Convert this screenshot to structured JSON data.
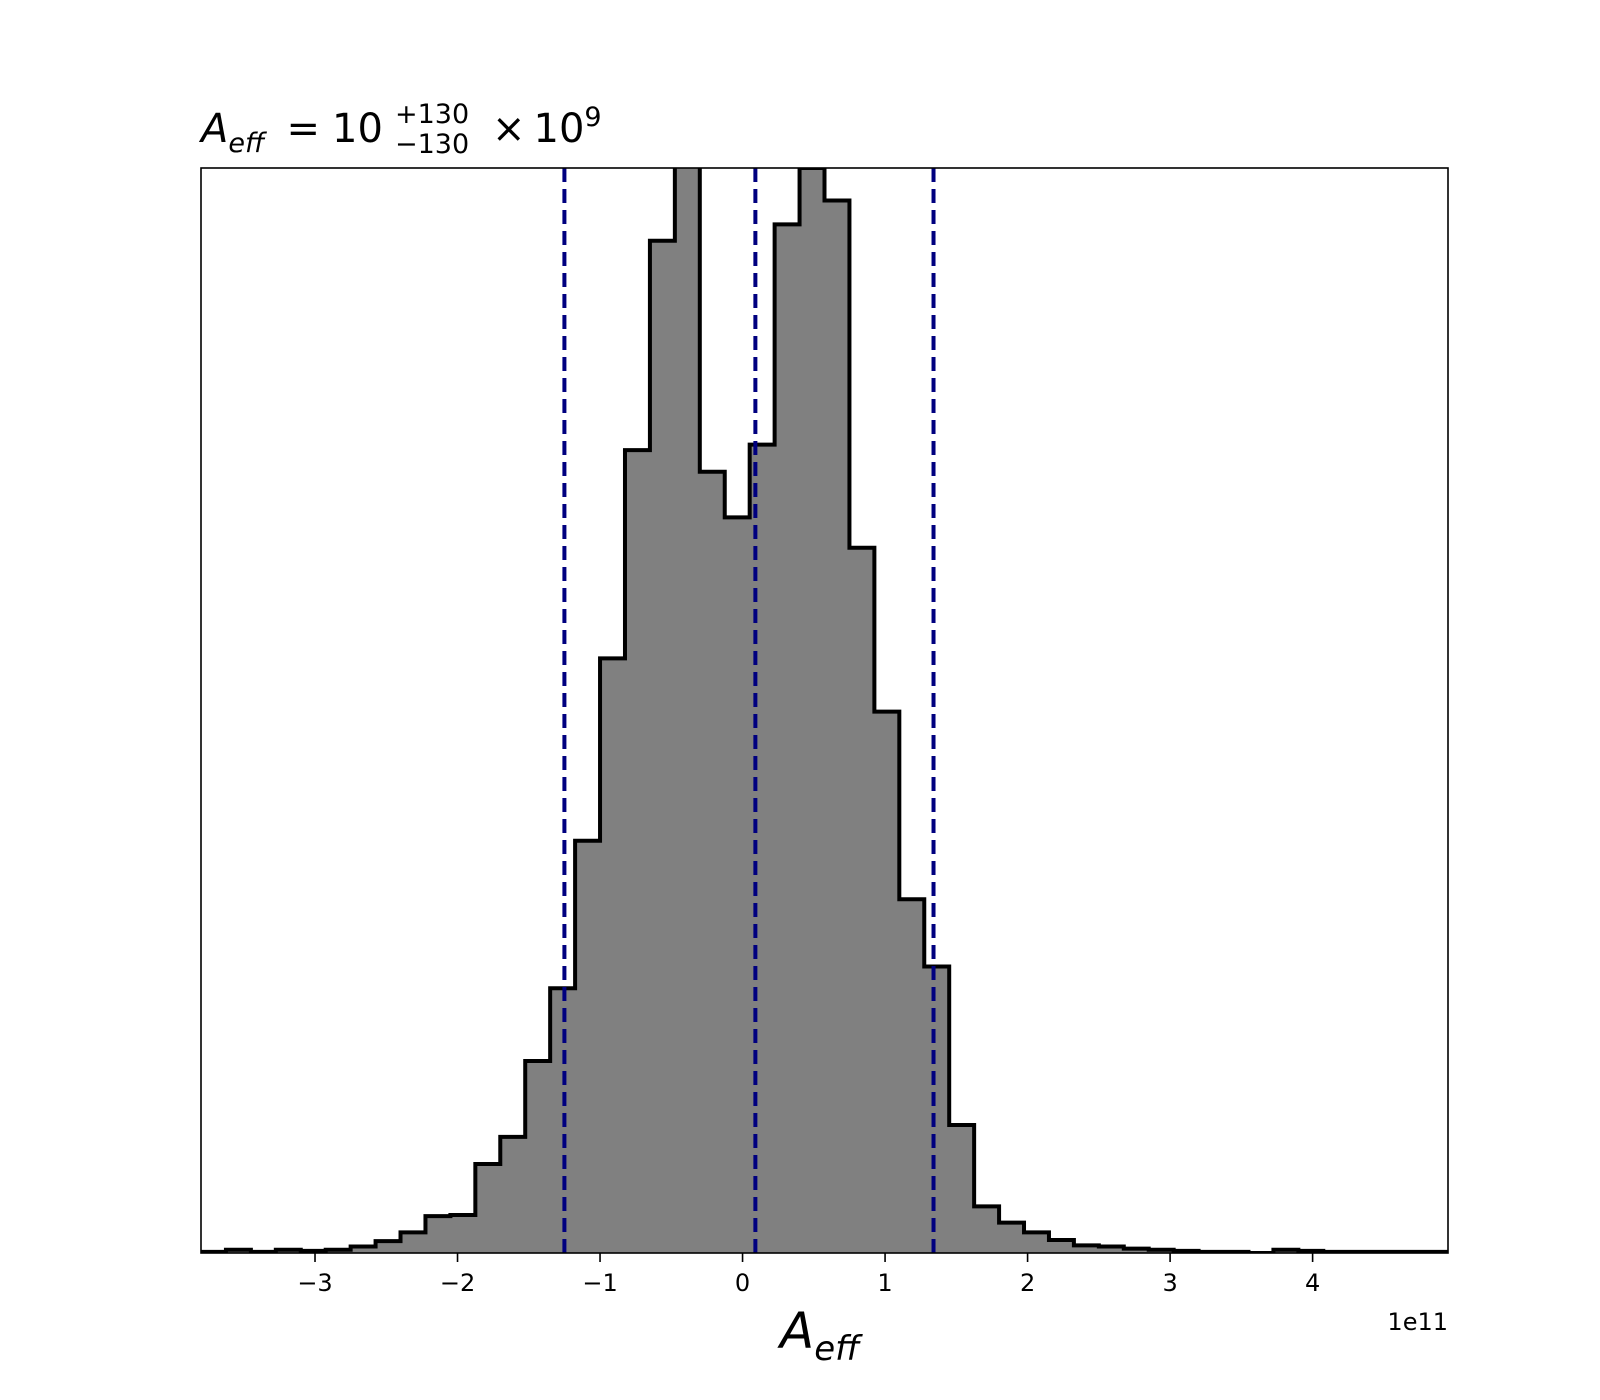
{
  "chart_data": {
    "type": "bar",
    "title": {
      "symbol": "A",
      "symbol_sub": "eff",
      "equals": "=",
      "median": "10",
      "upper_err": "+130",
      "lower_err": "−130",
      "times": "×",
      "scale_base": "10",
      "scale_exp": "9"
    },
    "xlabel": {
      "symbol": "A",
      "sub": "eff"
    },
    "x_offset_label": "1e11",
    "xlim": [
      -3.8,
      4.95
    ],
    "ylim": [
      0,
      1000
    ],
    "x_ticks": [
      {
        "value": -3,
        "label": "−3"
      },
      {
        "value": -2,
        "label": "−2"
      },
      {
        "value": -1,
        "label": "−1"
      },
      {
        "value": 0,
        "label": "0"
      },
      {
        "value": 1,
        "label": "1"
      },
      {
        "value": 2,
        "label": "2"
      },
      {
        "value": 3,
        "label": "3"
      },
      {
        "value": 4,
        "label": "4"
      }
    ],
    "bin_start": -3.8,
    "bin_width": 0.175,
    "counts": [
      1,
      3,
      1,
      3,
      2,
      3,
      6,
      11,
      19,
      34,
      35,
      82,
      107,
      177,
      244,
      380,
      548,
      740,
      933,
      1250,
      720,
      678,
      745,
      948,
      1000,
      970,
      650,
      499,
      326,
      264,
      118,
      43,
      28,
      19,
      12,
      7,
      6,
      4,
      3,
      2,
      1,
      1,
      0,
      3,
      2,
      1,
      1,
      1,
      1,
      1
    ],
    "fill_color": "#808080",
    "edge_color": "#000000",
    "quantile_lines": {
      "values": [
        -1.25,
        0.09,
        1.34
      ],
      "color": "#00007f",
      "style": "dashed"
    },
    "grid": false,
    "yticks_visible": false
  }
}
